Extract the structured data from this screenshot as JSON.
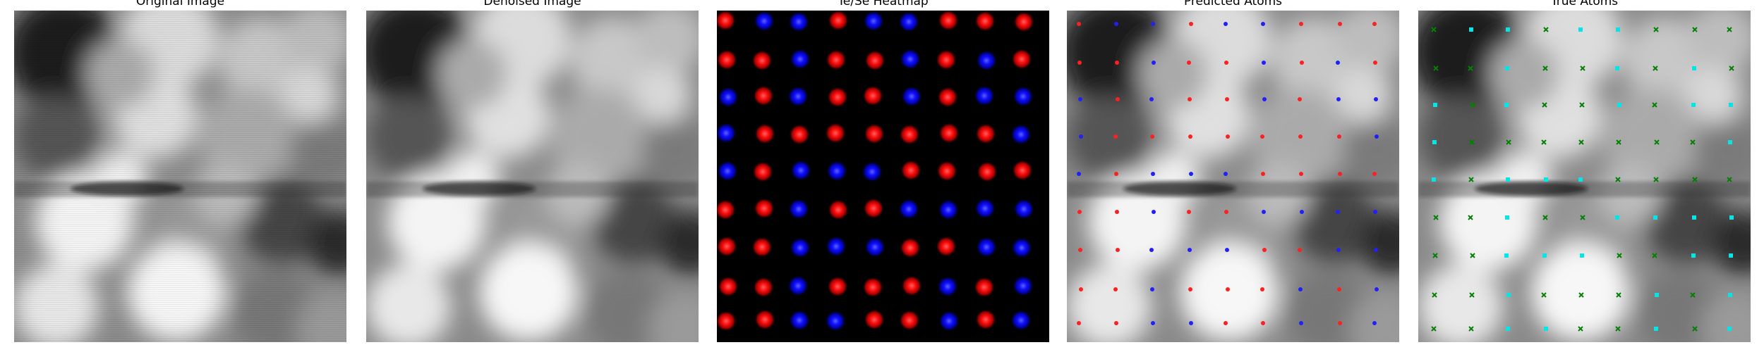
{
  "figure": {
    "panels": [
      {
        "key": "original",
        "title": "Original Image",
        "kind": "image"
      },
      {
        "key": "denoised",
        "title": "Denoised Image",
        "kind": "image"
      },
      {
        "key": "heatmap",
        "title": "Te/Se Heatmap",
        "kind": "heatmap"
      },
      {
        "key": "predicted",
        "title": "Predicted Atoms",
        "kind": "atoms-predicted"
      },
      {
        "key": "true",
        "title": "True Atoms",
        "kind": "atoms-true"
      }
    ],
    "colors": {
      "te": "#ff2020",
      "se": "#2020ff",
      "true_te": "#008000",
      "true_se": "#00e5e5",
      "heatmap_bg": "#000000"
    }
  }
}
